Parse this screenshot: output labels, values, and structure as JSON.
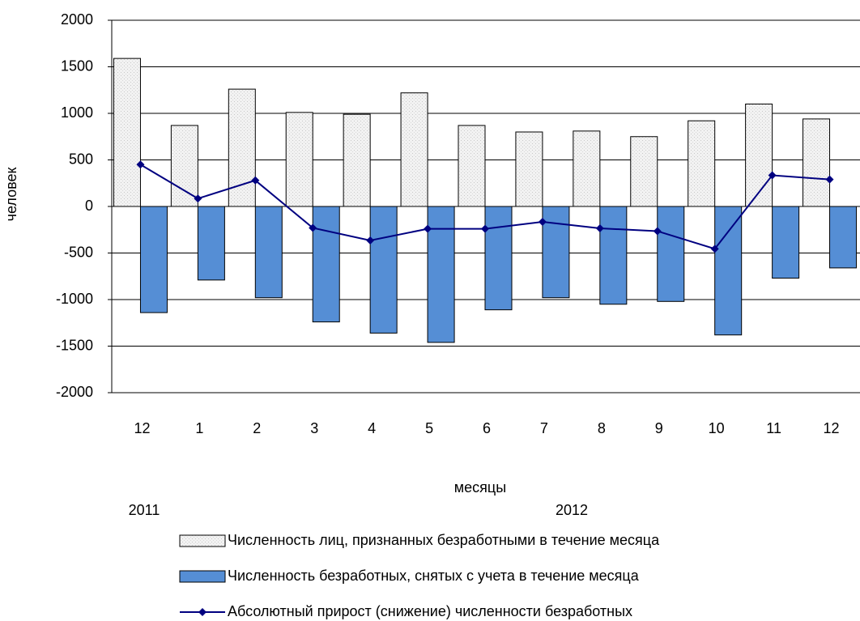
{
  "chart_data": {
    "type": "bar-line",
    "y_label": "человек",
    "x_label": "месяцы",
    "year_labels": [
      "2011",
      "2012"
    ],
    "categories": [
      "12",
      "1",
      "2",
      "3",
      "4",
      "5",
      "6",
      "7",
      "8",
      "9",
      "10",
      "11",
      "12"
    ],
    "series": [
      {
        "name": "Численность лиц, признанных безработными в течение месяца",
        "type": "bar",
        "color": "#ececec",
        "values": [
          1590,
          870,
          1260,
          1010,
          990,
          1220,
          870,
          800,
          810,
          750,
          920,
          1100,
          940
        ]
      },
      {
        "name": "Численность безработных, снятых с учета в течение месяца",
        "type": "bar",
        "color": "#558ed5",
        "values": [
          -1140,
          -790,
          -980,
          -1240,
          -1360,
          -1460,
          -1110,
          -980,
          -1050,
          -1020,
          -1380,
          -770,
          -660
        ]
      },
      {
        "name": "Абсолютный прирост (снижение) численности безработных",
        "type": "line",
        "color": "#000080",
        "values": [
          450,
          85,
          280,
          -230,
          -365,
          -240,
          -240,
          -165,
          -235,
          -265,
          -455,
          335,
          290
        ]
      }
    ],
    "ylim": [
      -2000,
      2000
    ],
    "yticks": [
      -2000,
      -1500,
      -1000,
      -500,
      0,
      500,
      1000,
      1500,
      2000
    ],
    "grid": true
  }
}
